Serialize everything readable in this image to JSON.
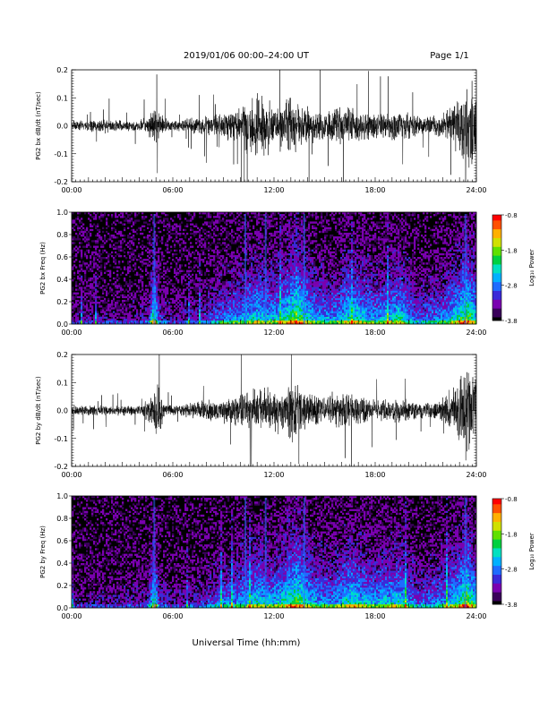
{
  "header": {
    "title": "2019/01/06  00:00–24:00 UT",
    "page_label": "Page 1/1"
  },
  "footer": {
    "xlabel": "Universal Time (hh:mm)"
  },
  "time_ticks": [
    "00:00",
    "06:00",
    "12:00",
    "18:00",
    "24:00"
  ],
  "colorbar": {
    "label": "Log₁₀ Power",
    "ticks": [
      "-0.8",
      "-1.8",
      "-2.8",
      "-3.8"
    ],
    "colors": [
      "#000000",
      "#3a005a",
      "#7a00b0",
      "#3a2ad8",
      "#1f6cff",
      "#00b0ff",
      "#00e0c0",
      "#00d040",
      "#60e000",
      "#d0e000",
      "#ffb000",
      "#ff5000",
      "#ff0000"
    ]
  },
  "chart_data": [
    {
      "type": "line",
      "name": "bx-timeseries",
      "ylabel": "PG2 bx dB/dt (nT/sec)",
      "xlim": [
        0,
        24
      ],
      "ylim": [
        -0.2,
        0.2
      ],
      "yticks": [
        -0.2,
        -0.1,
        0.0,
        0.1,
        0.2
      ],
      "ytick_labels": [
        "-0.2",
        "-0.1",
        "0.0",
        "0.1",
        "0.2"
      ],
      "envelope": {
        "hours": [
          0,
          1,
          2,
          3,
          4,
          4.8,
          5.1,
          5.5,
          6,
          7,
          8,
          9,
          10,
          10.5,
          11,
          11.5,
          12,
          12.5,
          13,
          13.5,
          14,
          15,
          16,
          17,
          18,
          19,
          20,
          21,
          22,
          22.5,
          23,
          23.3,
          23.6,
          24
        ],
        "amplitude": [
          0.02,
          0.02,
          0.03,
          0.02,
          0.02,
          0.06,
          0.08,
          0.03,
          0.02,
          0.03,
          0.04,
          0.05,
          0.08,
          0.12,
          0.14,
          0.12,
          0.08,
          0.1,
          0.12,
          0.09,
          0.07,
          0.06,
          0.08,
          0.07,
          0.05,
          0.06,
          0.05,
          0.04,
          0.05,
          0.07,
          0.12,
          0.2,
          0.2,
          0.15
        ]
      }
    },
    {
      "type": "heatmap",
      "name": "bx-spectrogram",
      "ylabel": "PG2 bx Freq (Hz)",
      "xlim": [
        0,
        24
      ],
      "ylim": [
        0,
        1.0
      ],
      "yticks": [
        0.0,
        0.2,
        0.4,
        0.6,
        0.8,
        1.0
      ],
      "ytick_labels": [
        "0.0",
        "0.2",
        "0.4",
        "0.6",
        "0.8",
        "1.0"
      ],
      "zlim": [
        -3.8,
        -0.8
      ],
      "zlabel": "Log₁₀ Power"
    },
    {
      "type": "line",
      "name": "by-timeseries",
      "ylabel": "PG2 by dB/dt (nT/sec)",
      "xlim": [
        0,
        24
      ],
      "ylim": [
        -0.2,
        0.2
      ],
      "yticks": [
        -0.2,
        -0.1,
        0.0,
        0.1,
        0.2
      ],
      "ytick_labels": [
        "-0.2",
        "-0.1",
        "0.0",
        "0.1",
        "0.2"
      ],
      "envelope": {
        "hours": [
          0,
          1,
          2,
          3,
          4,
          4.8,
          5.1,
          5.5,
          6,
          7,
          8,
          9,
          10,
          10.5,
          11,
          11.5,
          12,
          12.5,
          13,
          13.5,
          14,
          15,
          16,
          17,
          18,
          19,
          20,
          21,
          22,
          22.5,
          23,
          23.3,
          23.6,
          24
        ],
        "amplitude": [
          0.02,
          0.02,
          0.02,
          0.02,
          0.02,
          0.06,
          0.12,
          0.03,
          0.02,
          0.03,
          0.04,
          0.05,
          0.07,
          0.08,
          0.09,
          0.09,
          0.08,
          0.1,
          0.12,
          0.1,
          0.07,
          0.06,
          0.08,
          0.06,
          0.04,
          0.05,
          0.04,
          0.03,
          0.05,
          0.08,
          0.13,
          0.2,
          0.2,
          0.16
        ]
      }
    },
    {
      "type": "heatmap",
      "name": "by-spectrogram",
      "ylabel": "PG2 by Freq (Hz)",
      "xlim": [
        0,
        24
      ],
      "ylim": [
        0,
        1.0
      ],
      "yticks": [
        0.0,
        0.2,
        0.4,
        0.6,
        0.8,
        1.0
      ],
      "ytick_labels": [
        "0.0",
        "0.2",
        "0.4",
        "0.6",
        "0.8",
        "1.0"
      ],
      "zlim": [
        -3.8,
        -0.8
      ],
      "zlabel": "Log₁₀ Power"
    }
  ]
}
